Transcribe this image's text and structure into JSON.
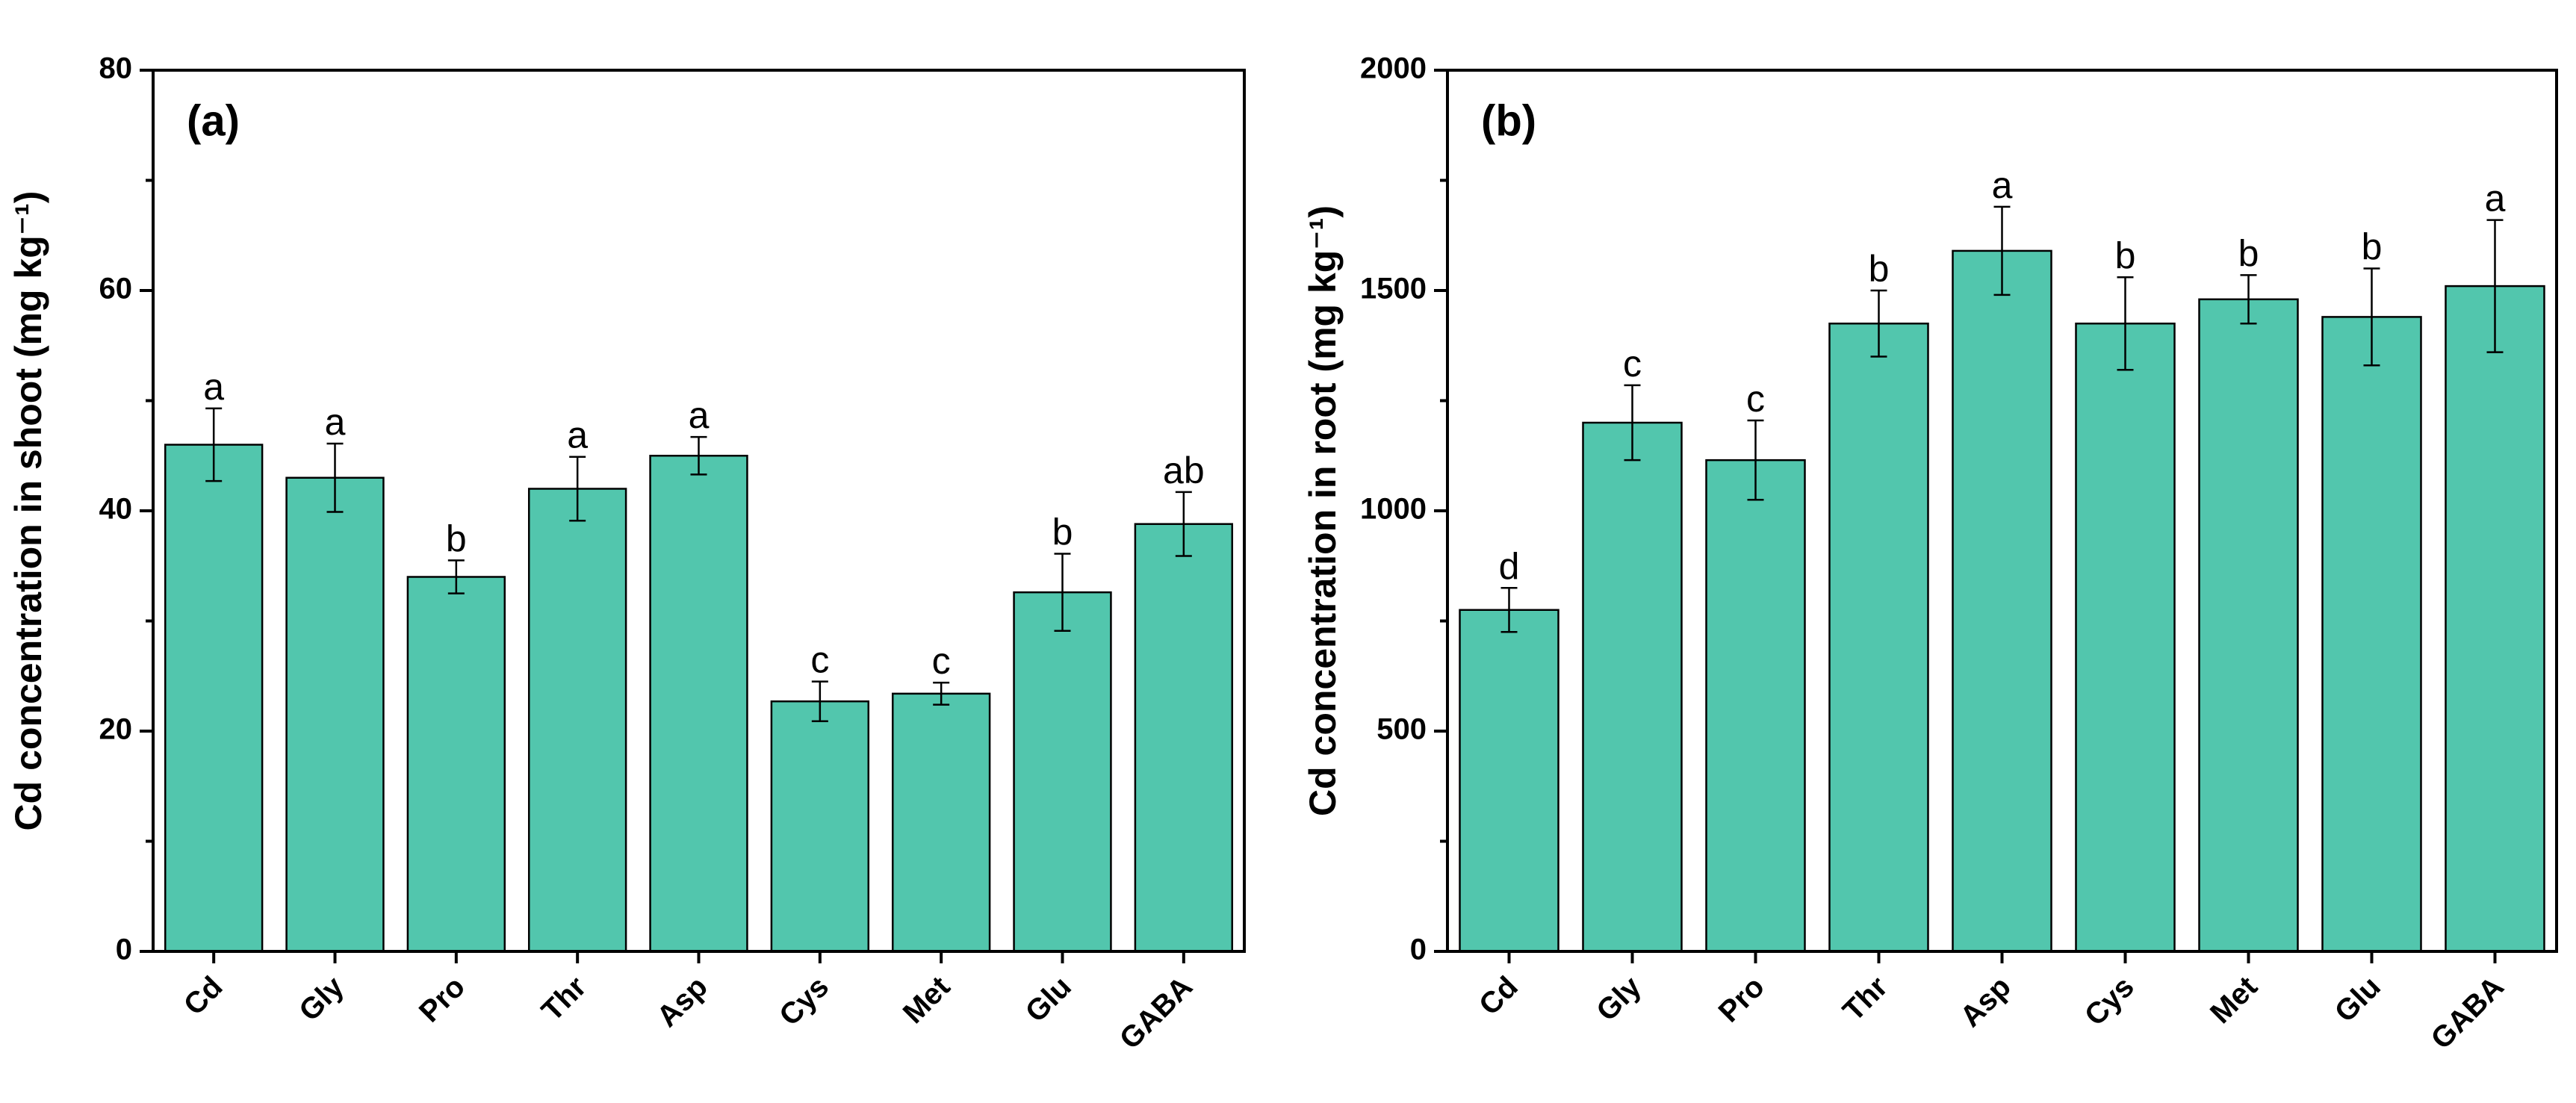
{
  "chart_data": [
    {
      "type": "bar",
      "title": "(a)",
      "ylabel": "Cd concentration in shoot (mg kg⁻¹)",
      "categories": [
        "Cd",
        "Gly",
        "Pro",
        "Thr",
        "Asp",
        "Cys",
        "Met",
        "Glu",
        "GABA"
      ],
      "values": [
        46,
        43,
        34,
        42,
        45,
        22.7,
        23.4,
        32.6,
        38.8
      ],
      "errors": [
        3.3,
        3.1,
        1.5,
        2.9,
        1.7,
        1.8,
        1.0,
        3.5,
        2.9
      ],
      "annotations": [
        "a",
        "a",
        "b",
        "a",
        "a",
        "c",
        "c",
        "b",
        "ab"
      ],
      "color": "#52c6ad",
      "ylim": [
        0,
        80
      ],
      "yticks": [
        0,
        20,
        40,
        60,
        80
      ]
    },
    {
      "type": "bar",
      "title": "(b)",
      "ylabel": "Cd concentration in root (mg kg⁻¹)",
      "categories": [
        "Cd",
        "Gly",
        "Pro",
        "Thr",
        "Asp",
        "Cys",
        "Met",
        "Glu",
        "GABA"
      ],
      "values": [
        775,
        1200,
        1115,
        1425,
        1590,
        1425,
        1480,
        1440,
        1510
      ],
      "errors": [
        50,
        85,
        90,
        75,
        100,
        105,
        55,
        110,
        150
      ],
      "annotations": [
        "d",
        "c",
        "c",
        "b",
        "a",
        "b",
        "b",
        "b",
        "a"
      ],
      "color": "#52c6ad",
      "ylim": [
        0,
        2000
      ],
      "yticks": [
        0,
        500,
        1000,
        1500,
        2000
      ]
    }
  ]
}
